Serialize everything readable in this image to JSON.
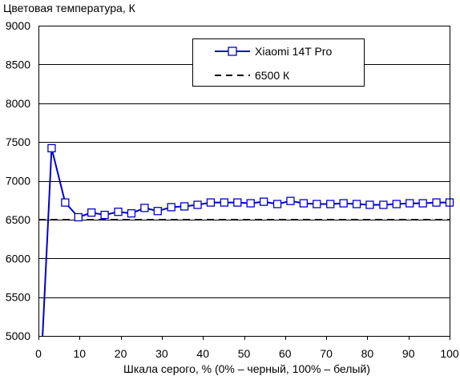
{
  "chart_data": {
    "type": "line",
    "title": "",
    "ylabel": "Цветовая температура, К",
    "xlabel": "Шкала серого, % (0% – черный, 100% – белый)",
    "xlim": [
      0,
      100
    ],
    "ylim": [
      5000,
      9000
    ],
    "xticks": [
      0,
      10,
      20,
      30,
      40,
      50,
      60,
      70,
      80,
      90,
      100
    ],
    "yticks": [
      5000,
      5500,
      6000,
      6500,
      7000,
      7500,
      8000,
      8500,
      9000
    ],
    "grid": "horizontal",
    "legend_position": "top-right",
    "series": [
      {
        "name": "Xiaomi 14T Pro",
        "color": "#0000cc",
        "marker": "square",
        "line_style": "solid",
        "x": [
          3.2,
          6.5,
          9.7,
          12.9,
          16.1,
          19.4,
          22.6,
          25.8,
          29.0,
          32.3,
          35.5,
          38.7,
          41.9,
          45.2,
          48.4,
          51.6,
          54.8,
          58.1,
          61.3,
          64.5,
          67.7,
          71.0,
          74.2,
          77.4,
          80.6,
          83.9,
          87.1,
          90.3,
          93.5,
          96.8,
          100
        ],
        "y": [
          7420,
          6720,
          6530,
          6590,
          6560,
          6600,
          6580,
          6650,
          6610,
          6660,
          6670,
          6690,
          6720,
          6720,
          6720,
          6710,
          6730,
          6700,
          6740,
          6710,
          6700,
          6700,
          6710,
          6700,
          6690,
          6690,
          6700,
          6710,
          6710,
          6720,
          6720
        ],
        "lead_in": {
          "x": [
            1.0,
            3.2
          ],
          "y": [
            5000,
            7420
          ]
        }
      },
      {
        "name": "6500 К",
        "color": "#000000",
        "line_style": "dashed",
        "x": [
          0,
          100
        ],
        "y": [
          6500,
          6500
        ]
      }
    ]
  }
}
